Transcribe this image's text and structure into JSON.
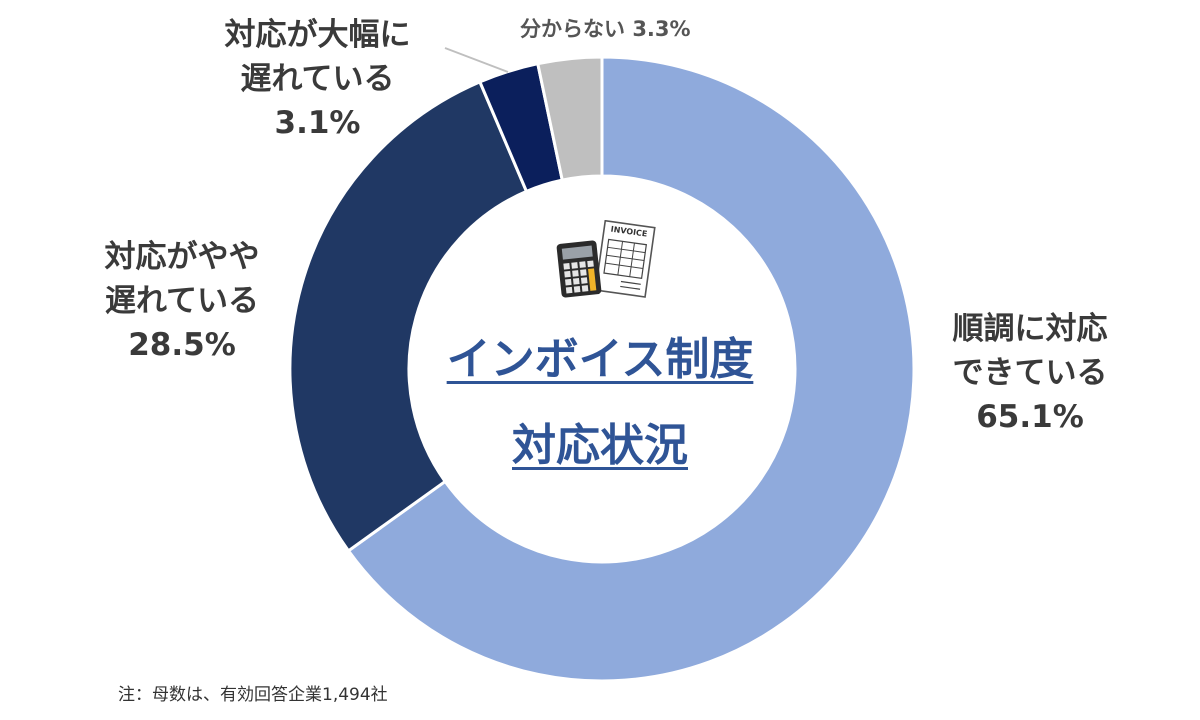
{
  "chart_data": {
    "type": "donut",
    "title_lines": [
      "インボイス制度",
      "対応状況"
    ],
    "slices": [
      {
        "label_lines": [
          "順調に対応",
          "できている"
        ],
        "pct_text": "65.1%",
        "value": 65.1,
        "color": "#8faadc"
      },
      {
        "label_lines": [
          "対応がやや",
          "遅れている"
        ],
        "pct_text": "28.5%",
        "value": 28.5,
        "color": "#203864"
      },
      {
        "label_lines": [
          "対応が大幅に",
          "遅れている"
        ],
        "pct_text": "3.1%",
        "value": 3.1,
        "color": "#0b1f5c"
      },
      {
        "label_text": "分からない",
        "pct_text": "3.3%",
        "value": 3.3,
        "color": "#bfbfbf"
      }
    ],
    "note": "注：母数は、有効回答企業1,494社"
  },
  "icons": {
    "calculator": "calculator-icon",
    "invoice": "invoice-icon",
    "invoice_heading": "INVOICE"
  }
}
